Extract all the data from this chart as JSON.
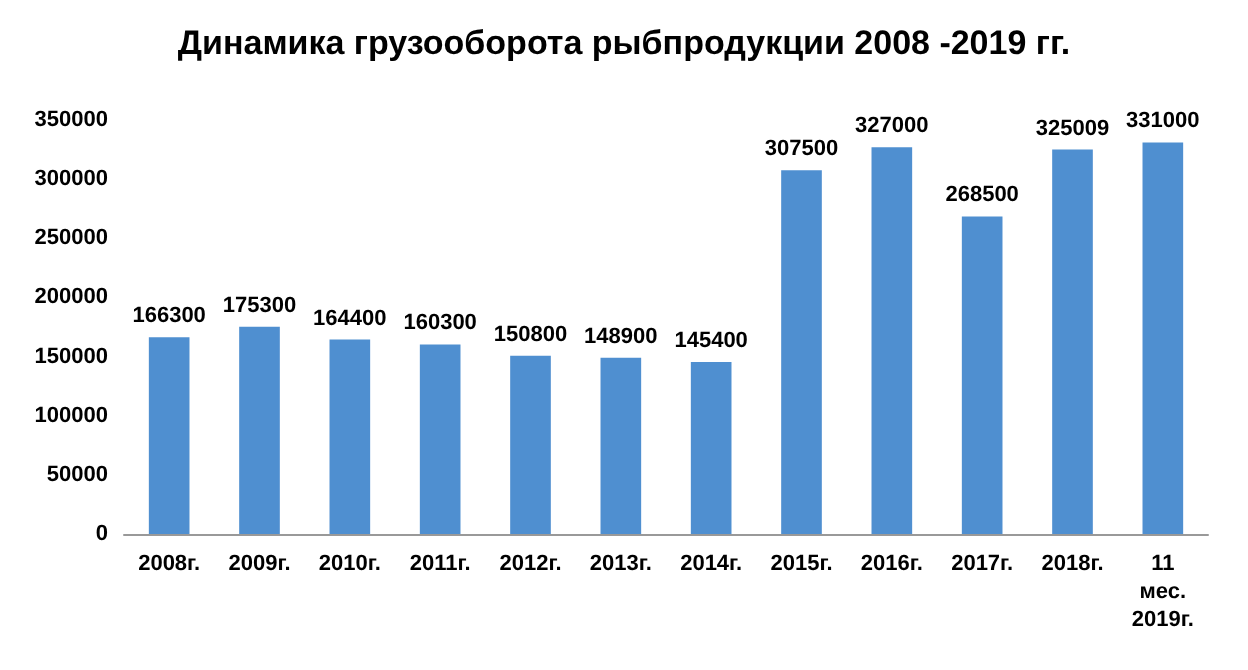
{
  "chart_data": {
    "type": "bar",
    "title": "Динамика грузооборота рыбпродукции 2008 -2019 гг.",
    "categories": [
      "2008г.",
      "2009г.",
      "2010г.",
      "2011г.",
      "2012г.",
      "2013г.",
      "2014г.",
      "2015г.",
      "2016г.",
      "2017г.",
      "2018г.",
      "11\nмес.\n2019г."
    ],
    "values": [
      166300,
      175300,
      164400,
      160300,
      150800,
      148900,
      145400,
      307500,
      327000,
      268500,
      325009,
      331000
    ],
    "color": "#4f8fd0",
    "data_labels": true,
    "grid": false,
    "ylim": [
      0,
      350000
    ],
    "yticks": [
      0,
      50000,
      100000,
      150000,
      200000,
      250000,
      300000,
      350000
    ]
  }
}
